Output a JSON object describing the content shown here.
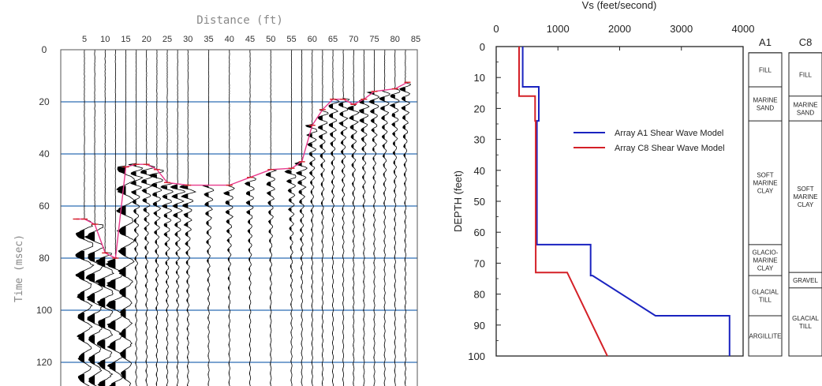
{
  "chart_data": [
    {
      "type": "line",
      "title": "",
      "xlabel": "Distance (ft)",
      "ylabel": "Time (msec)",
      "xlim": [
        0,
        90
      ],
      "ylim": [
        130,
        0
      ],
      "x_ticks": [
        5,
        10,
        15,
        20,
        25,
        30,
        35,
        40,
        45,
        50,
        55,
        60,
        65,
        70,
        75,
        80,
        85
      ],
      "y_ticks": [
        0,
        20,
        40,
        60,
        80,
        100,
        120
      ],
      "grid": "horizontal",
      "trace_offsets": [
        5,
        7.5,
        10,
        12.5,
        15,
        17.5,
        20,
        22.5,
        25,
        27.5,
        30,
        35,
        40,
        45,
        50,
        55,
        57.5,
        60,
        62.5,
        65,
        67.5,
        70,
        72.5,
        75,
        77.5,
        80,
        82.5
      ],
      "series": [
        {
          "color": "#e83a8c",
          "x": [
            3,
            5,
            7.5,
            10,
            12.5,
            15,
            17.5,
            20,
            22.5,
            25,
            30,
            40,
            45,
            50,
            55,
            57.5,
            60,
            62.5,
            65,
            67.5,
            70,
            72.5,
            75,
            80,
            83
          ],
          "y": [
            65,
            65,
            67,
            78,
            80,
            45,
            44,
            44,
            46,
            51,
            52,
            52,
            49,
            46,
            45.5,
            43,
            29,
            23,
            19,
            19,
            21,
            19,
            16,
            15,
            12.5
          ]
        }
      ]
    },
    {
      "type": "line",
      "title": "",
      "xlabel": "Vs (feet/second)",
      "ylabel": "DEPTH (feet)",
      "xlim": [
        0,
        4000
      ],
      "ylim": [
        100,
        0
      ],
      "x_ticks": [
        0,
        1000,
        2000,
        3000,
        4000
      ],
      "y_ticks": [
        0,
        10,
        20,
        30,
        40,
        50,
        60,
        70,
        80,
        90,
        100
      ],
      "legend": "center",
      "series": [
        {
          "name": "Array A1 Shear Wave Model",
          "color": "#1a23c0",
          "x": [
            430,
            430,
            690,
            690,
            660,
            660,
            1530,
            1530,
            1560,
            2580,
            3780,
            3780
          ],
          "y": [
            0,
            13,
            13,
            24,
            24,
            64,
            64,
            74,
            74,
            87,
            87,
            100
          ]
        },
        {
          "name": "Array C8 Shear Wave Model",
          "color": "#d42027",
          "x": [
            370,
            370,
            630,
            630,
            640,
            640,
            1150,
            1150,
            1800
          ],
          "y": [
            0,
            16,
            16,
            24,
            24,
            73,
            73,
            73,
            100
          ]
        }
      ]
    }
  ],
  "columns": [
    {
      "header": "A1",
      "layers": [
        {
          "top": 0,
          "bottom": 2,
          "lines": []
        },
        {
          "top": 2,
          "bottom": 13,
          "lines": [
            "FILL"
          ]
        },
        {
          "top": 13,
          "bottom": 24,
          "lines": [
            "MARINE",
            "SAND"
          ]
        },
        {
          "top": 24,
          "bottom": 64,
          "lines": [
            "SOFT",
            "MARINE",
            "CLAY"
          ]
        },
        {
          "top": 64,
          "bottom": 74,
          "lines": [
            "GLACIO-",
            "MARINE",
            "CLAY"
          ]
        },
        {
          "top": 74,
          "bottom": 87,
          "lines": [
            "GLACIAL",
            "TILL"
          ]
        },
        {
          "top": 87,
          "bottom": 100,
          "lines": [
            "ARGILLITE"
          ]
        }
      ]
    },
    {
      "header": "C8",
      "layers": [
        {
          "top": 0,
          "bottom": 2,
          "lines": []
        },
        {
          "top": 2,
          "bottom": 16,
          "lines": [
            "FILL"
          ]
        },
        {
          "top": 16,
          "bottom": 24,
          "lines": [
            "MARINE",
            "SAND"
          ]
        },
        {
          "top": 24,
          "bottom": 73,
          "lines": [
            "SOFT",
            "MARINE",
            "CLAY"
          ]
        },
        {
          "top": 73,
          "bottom": 78,
          "lines": [
            "GRAVEL"
          ]
        },
        {
          "top": 78,
          "bottom": 100,
          "lines": [
            "GLACIAL",
            "TILL"
          ]
        }
      ]
    }
  ]
}
